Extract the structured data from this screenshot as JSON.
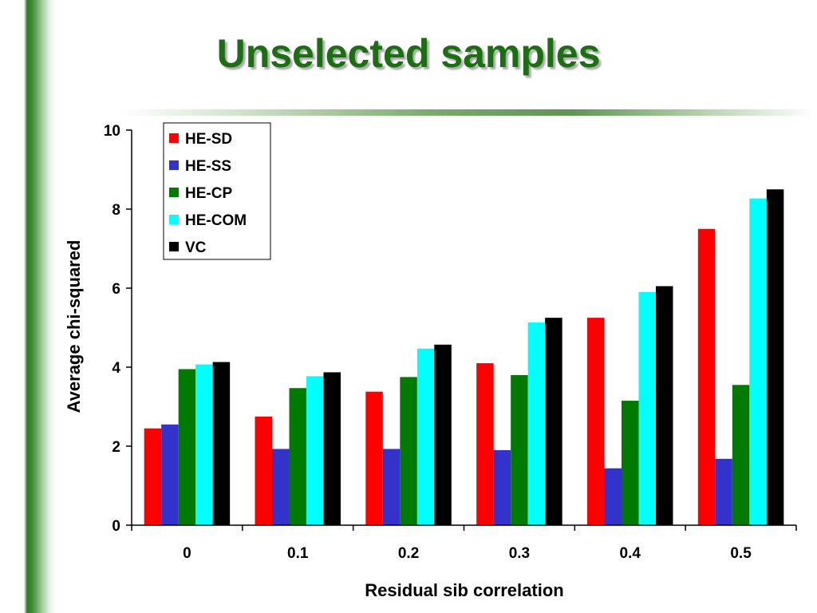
{
  "slide": {
    "title": "Unselected samples"
  },
  "colors": {
    "title": "#1c6e12",
    "HE-SD": "#ff0000",
    "HE-SS": "#3333cc",
    "HE-CP": "#007a00",
    "HE-COM": "#00ffff",
    "VC": "#000000"
  },
  "chart_data": {
    "type": "bar",
    "title": "",
    "xlabel": "Residual sib correlation",
    "ylabel": "Average chi-squared",
    "categories": [
      "0",
      "0.1",
      "0.2",
      "0.3",
      "0.4",
      "0.5"
    ],
    "ylim": [
      0,
      10
    ],
    "yticks": [
      "0",
      "2",
      "4",
      "6",
      "8",
      "10"
    ],
    "grid": false,
    "legend_position": "top-left",
    "series": [
      {
        "name": "HE-SD",
        "color": "#ff0000",
        "values": [
          2.45,
          2.75,
          3.38,
          4.1,
          5.25,
          7.5
        ]
      },
      {
        "name": "HE-SS",
        "color": "#3333cc",
        "values": [
          2.55,
          1.93,
          1.93,
          1.9,
          1.44,
          1.68
        ]
      },
      {
        "name": "HE-CP",
        "color": "#007a00",
        "values": [
          3.95,
          3.47,
          3.75,
          3.8,
          3.15,
          3.55
        ]
      },
      {
        "name": "HE-COM",
        "color": "#00ffff",
        "values": [
          4.07,
          3.77,
          4.47,
          5.13,
          5.9,
          8.27
        ]
      },
      {
        "name": "VC",
        "color": "#000000",
        "values": [
          4.13,
          3.87,
          4.57,
          5.25,
          6.05,
          8.5
        ]
      }
    ]
  }
}
